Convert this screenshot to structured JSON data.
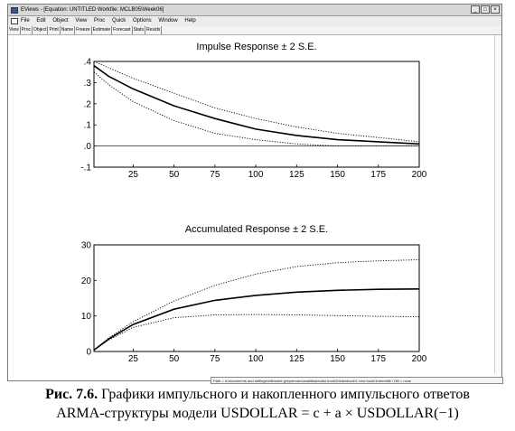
{
  "window": {
    "title": "EViews - [Equation: UNTITLED   Workfile: MCLB05\\Week06]",
    "controls": [
      "_",
      "□",
      "×"
    ]
  },
  "menubar": {
    "items": [
      "File",
      "Edit",
      "Object",
      "View",
      "Proc",
      "Quick",
      "Options",
      "Window",
      "Help"
    ]
  },
  "toolbar": {
    "buttons": [
      "View",
      "Proc",
      "Object",
      "Print",
      "Name",
      "Freeze",
      "Estimate",
      "Forecast",
      "Stats",
      "Resids"
    ]
  },
  "statusbar": {
    "text": "Path = d:\\documents and settings\\elle\\sobe.g\\nysemarv\\analitika\\dollar book\\2dollarbook\\1 new book\\1merehfik \\ DB = none"
  },
  "caption": {
    "label": "Рис. 7.6.",
    "line1": " Графики импульсного и накопленного импульсного ответов",
    "line2": "ARMA-структуры модели USDOLLAR = c + a × USDOLLAR(−1)"
  },
  "chart_data": [
    {
      "type": "line",
      "title": "Impulse Response ± 2 S.E.",
      "xlim": [
        1,
        200
      ],
      "ylim": [
        -0.1,
        0.4
      ],
      "x_ticks": [
        25,
        50,
        75,
        100,
        125,
        150,
        175,
        200
      ],
      "y_ticks": [
        -0.1,
        0.0,
        0.1,
        0.2,
        0.3,
        0.4
      ],
      "y_tick_labels": [
        "-.1",
        ".0",
        ".1",
        ".2",
        ".3",
        ".4"
      ],
      "x": [
        1,
        10,
        25,
        50,
        75,
        100,
        125,
        150,
        175,
        200
      ],
      "series": [
        {
          "style": "solid",
          "values": [
            0.38,
            0.33,
            0.27,
            0.19,
            0.13,
            0.08,
            0.05,
            0.03,
            0.02,
            0.01
          ]
        },
        {
          "style": "dotted",
          "values": [
            0.4,
            0.37,
            0.32,
            0.25,
            0.18,
            0.13,
            0.09,
            0.06,
            0.04,
            0.02
          ]
        },
        {
          "style": "dotted",
          "values": [
            0.35,
            0.29,
            0.21,
            0.12,
            0.06,
            0.03,
            0.01,
            0.0,
            0.0,
            0.0
          ]
        }
      ]
    },
    {
      "type": "line",
      "title": "Accumulated Response ± 2 S.E.",
      "xlim": [
        1,
        200
      ],
      "ylim": [
        0,
        30
      ],
      "x_ticks": [
        25,
        50,
        75,
        100,
        125,
        150,
        175,
        200
      ],
      "y_ticks": [
        0,
        10,
        20,
        30
      ],
      "y_tick_labels": [
        "0",
        "10",
        "20",
        "30"
      ],
      "x": [
        1,
        10,
        25,
        50,
        75,
        100,
        125,
        150,
        175,
        200
      ],
      "series": [
        {
          "style": "solid",
          "values": [
            0.4,
            3.5,
            7.6,
            11.9,
            14.4,
            15.8,
            16.7,
            17.2,
            17.5,
            17.6
          ]
        },
        {
          "style": "dotted",
          "values": [
            0.4,
            3.8,
            8.4,
            14.2,
            18.6,
            21.8,
            23.9,
            25.0,
            25.5,
            25.8
          ]
        },
        {
          "style": "dotted",
          "values": [
            0.4,
            3.2,
            6.8,
            9.5,
            10.3,
            10.4,
            10.3,
            10.1,
            9.9,
            9.8
          ]
        }
      ]
    }
  ]
}
